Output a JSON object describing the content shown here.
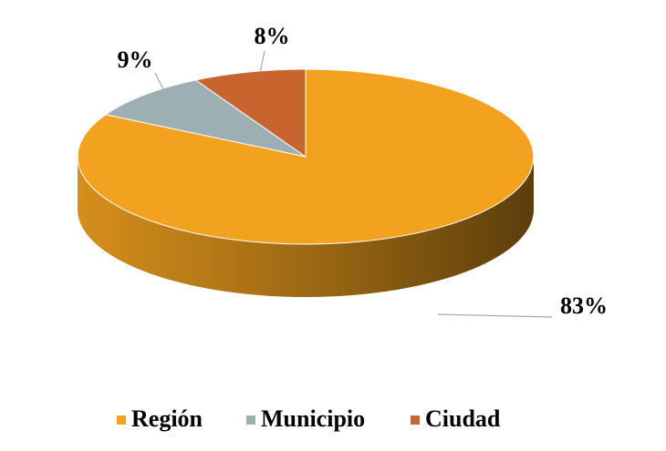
{
  "chart_data": {
    "type": "pie",
    "categories": [
      "Región",
      "Municipio",
      "Ciudad"
    ],
    "values": [
      83,
      9,
      8
    ],
    "value_labels": [
      "83%",
      "9%",
      "8%"
    ],
    "colors": [
      "#f2a21e",
      "#9eafb4",
      "#c8642e"
    ],
    "legend": "bottom"
  }
}
